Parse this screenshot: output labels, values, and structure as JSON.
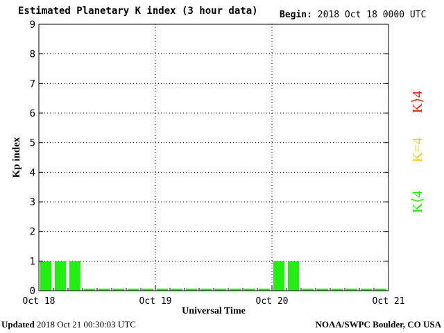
{
  "header": {
    "title": "Estimated Planetary K index (3 hour data)",
    "begin_label": "Begin:",
    "begin_value": "2018 Oct 18 0000 UTC"
  },
  "footer": {
    "updated_label": "Updated",
    "updated_value": "2018 Oct 21 00:30:03 UTC",
    "credit": "NOAA/SWPC Boulder, CO USA"
  },
  "legend": {
    "high": "K⟩4",
    "equal": "K=4",
    "low": "K⟨4"
  },
  "colors": {
    "bar_low": "#22ee11",
    "level_high": "#ee2211",
    "level_equal": "#ffcc00",
    "level_low": "#22ee11",
    "axis": "#000000"
  },
  "chart_data": {
    "type": "bar",
    "title": "Estimated Planetary K index (3 hour data)",
    "xlabel": "Universal Time",
    "ylabel": "Kp index",
    "ylim": [
      0,
      9
    ],
    "y_ticks": [
      "0",
      "1",
      "2",
      "3",
      "4",
      "5",
      "6",
      "7",
      "8",
      "9"
    ],
    "x_ticks": [
      "Oct 18",
      "Oct 19",
      "Oct 20",
      "Oct 21"
    ],
    "categories": [
      "2018 Oct 18 00",
      "2018 Oct 18 03",
      "2018 Oct 18 06",
      "2018 Oct 18 09",
      "2018 Oct 18 12",
      "2018 Oct 18 15",
      "2018 Oct 18 18",
      "2018 Oct 18 21",
      "2018 Oct 19 00",
      "2018 Oct 19 03",
      "2018 Oct 19 06",
      "2018 Oct 19 09",
      "2018 Oct 19 12",
      "2018 Oct 19 15",
      "2018 Oct 19 18",
      "2018 Oct 19 21",
      "2018 Oct 20 00",
      "2018 Oct 20 03",
      "2018 Oct 20 06",
      "2018 Oct 20 09",
      "2018 Oct 20 12",
      "2018 Oct 20 15",
      "2018 Oct 20 18",
      "2018 Oct 20 21"
    ],
    "values": [
      1,
      1,
      1,
      0,
      0,
      0,
      0,
      0,
      0,
      0,
      0,
      0,
      0,
      0,
      0,
      0,
      1,
      1,
      0,
      0,
      0,
      0,
      0,
      0
    ],
    "grid": true
  }
}
